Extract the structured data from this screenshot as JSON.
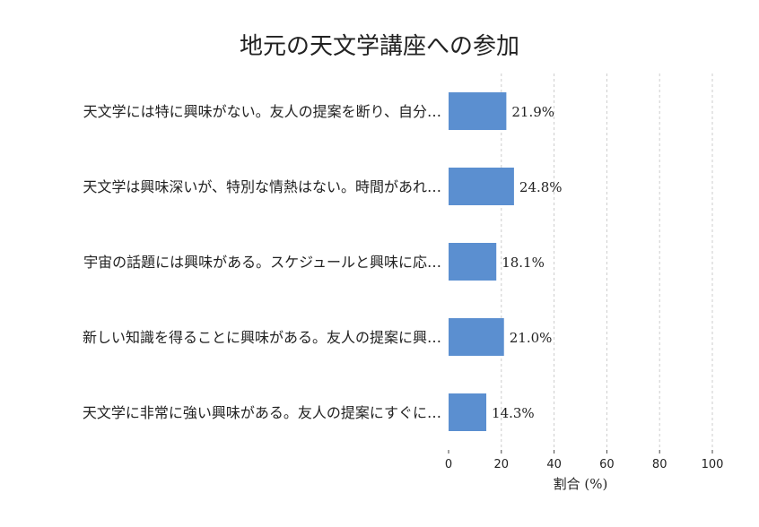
{
  "chart_data": {
    "type": "bar",
    "orientation": "horizontal",
    "title": "地元の天文学講座への参加",
    "xlabel": "割合 (%)",
    "ylabel": "",
    "categories": [
      "天文学には特に興味がない。友人の提案を断り、自分…",
      "天文学は興味深いが、特別な情熱はない。時間があれ…",
      "宇宙の話題には興味がある。スケジュールと興味に応…",
      "新しい知識を得ることに興味がある。友人の提案に興…",
      "天文学に非常に強い興味がある。友人の提案にすぐに…"
    ],
    "values": [
      21.9,
      24.8,
      18.1,
      21.0,
      14.3
    ],
    "value_labels": [
      "21.9%",
      "24.8%",
      "18.1%",
      "21.0%",
      "14.3%"
    ],
    "xlim": [
      0,
      100
    ],
    "xticks": [
      0,
      20,
      40,
      60,
      80,
      100
    ],
    "xtick_labels": [
      "0",
      "20",
      "40",
      "60",
      "80",
      "100"
    ],
    "grid": "vertical dashed",
    "bar_color": "#5b8fd0"
  }
}
